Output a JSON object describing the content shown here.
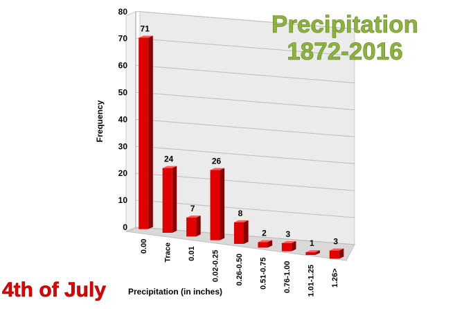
{
  "chart_data": {
    "type": "bar",
    "title": [
      "Precipitation",
      "1872-2016"
    ],
    "subtitle": "4th of July",
    "xlabel": "Precipitation (in inches)",
    "ylabel": "Frequency",
    "ylim": [
      0,
      80
    ],
    "yticks": [
      0,
      10,
      20,
      30,
      40,
      50,
      60,
      70,
      80
    ],
    "categories": [
      "0.00",
      "Trace",
      "0.01",
      "0.02-0.25",
      "0.26-0.50",
      "0.51-0.75",
      "0.76-1.00",
      "1.01-1.25",
      "1.26>"
    ],
    "values": [
      71,
      24,
      7,
      26,
      8,
      2,
      3,
      1,
      3
    ],
    "data_labels": [
      "71",
      "24",
      "7",
      "26",
      "8",
      "2",
      "3",
      "1",
      "3"
    ],
    "bar_color": "#e00000",
    "grid": true,
    "legend": "none"
  }
}
